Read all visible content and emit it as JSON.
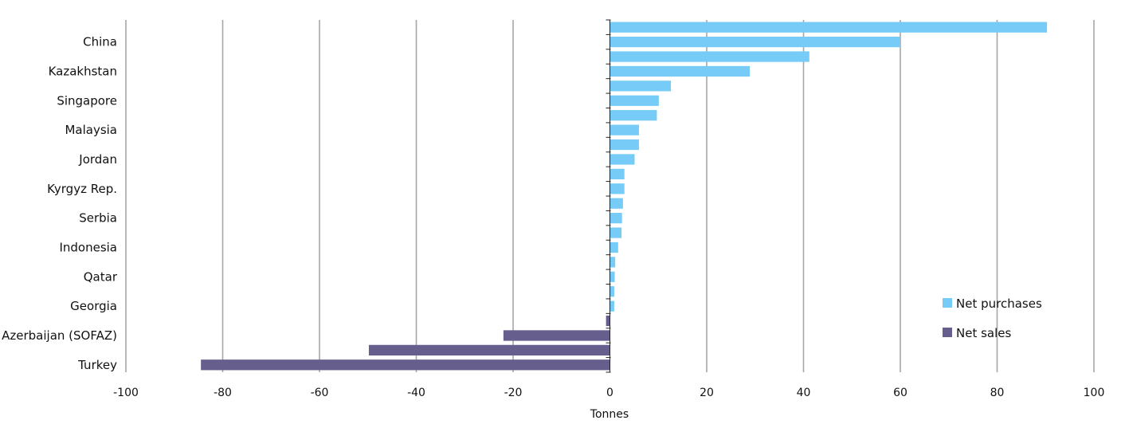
{
  "chart_data": {
    "type": "bar",
    "orientation": "horizontal",
    "title": "",
    "xlabel": "Tonnes",
    "ylabel": "",
    "xlim": [
      -100,
      100
    ],
    "xticks": [
      "-100",
      "-80",
      "-60",
      "-40",
      "-20",
      "0",
      "20",
      "40",
      "60",
      "80",
      "100"
    ],
    "grid": "vertical",
    "legend_position": "bottom-right",
    "category_labels_shown": [
      "China",
      "Kazakhstan",
      "Singapore",
      "Malaysia",
      "Jordan",
      "Kyrgyz Rep.",
      "Serbia",
      "Indonesia",
      "Qatar",
      "Georgia",
      "Azerbaijan (SOFAZ)",
      "Turkey"
    ],
    "series": [
      {
        "name": "Net purchases",
        "color": "#77ccf7",
        "values": [
          90.3,
          60.0,
          41.2,
          28.9,
          12.6,
          10.1,
          9.7,
          6.0,
          6.0,
          5.1,
          3.0,
          3.0,
          2.7,
          2.5,
          2.4,
          1.7,
          1.1,
          1.0,
          0.9,
          0.9
        ]
      },
      {
        "name": "Net sales",
        "color": "#665f8e",
        "values": [
          -0.8,
          -22.0,
          -49.8,
          -84.5
        ]
      }
    ]
  }
}
